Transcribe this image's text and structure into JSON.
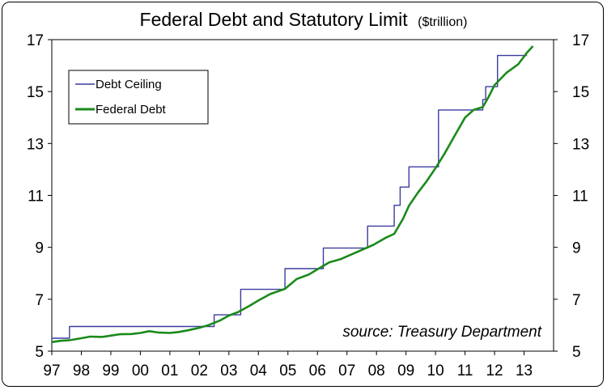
{
  "chart_data": {
    "type": "line",
    "title": "Federal Debt and Statutory Limit",
    "title_unit": "($trillion)",
    "xlabel": "",
    "ylabel": "",
    "xlim": [
      1997.0,
      2014.0
    ],
    "ylim": [
      5,
      17
    ],
    "y_ticks": [
      5,
      7,
      9,
      11,
      13,
      15,
      17
    ],
    "x_ticks": [
      {
        "label": "97",
        "value": 1997.0
      },
      {
        "label": "98",
        "value": 1998.0
      },
      {
        "label": "99",
        "value": 1999.0
      },
      {
        "label": "00",
        "value": 2000.0
      },
      {
        "label": "01",
        "value": 2001.0
      },
      {
        "label": "02",
        "value": 2002.0
      },
      {
        "label": "03",
        "value": 2003.0
      },
      {
        "label": "04",
        "value": 2004.0
      },
      {
        "label": "05",
        "value": 2005.0
      },
      {
        "label": "06",
        "value": 2006.0
      },
      {
        "label": "07",
        "value": 2007.0
      },
      {
        "label": "08",
        "value": 2008.0
      },
      {
        "label": "09",
        "value": 2009.0
      },
      {
        "label": "10",
        "value": 2010.0
      },
      {
        "label": "11",
        "value": 2011.0
      },
      {
        "label": "12",
        "value": 2012.0
      },
      {
        "label": "13",
        "value": 2013.0
      }
    ],
    "grid": false,
    "legend": "top-left",
    "series": [
      {
        "name": "Debt Ceiling",
        "color": "#3b3b9f",
        "step": true,
        "points": [
          [
            1997.0,
            5.5
          ],
          [
            1997.6,
            5.95
          ],
          [
            2002.5,
            6.4
          ],
          [
            2003.4,
            7.38
          ],
          [
            2004.9,
            8.18
          ],
          [
            2006.2,
            8.97
          ],
          [
            2007.7,
            9.82
          ],
          [
            2008.6,
            10.62
          ],
          [
            2008.8,
            11.32
          ],
          [
            2009.1,
            12.1
          ],
          [
            2010.1,
            14.29
          ],
          [
            2011.6,
            14.69
          ],
          [
            2011.7,
            15.19
          ],
          [
            2012.1,
            16.39
          ],
          [
            2013.1,
            16.39
          ]
        ]
      },
      {
        "name": "Federal Debt",
        "color": "#1a8a1a",
        "step": false,
        "points": [
          [
            1997.0,
            5.35
          ],
          [
            1997.3,
            5.4
          ],
          [
            1997.6,
            5.42
          ],
          [
            1998.0,
            5.5
          ],
          [
            1998.3,
            5.56
          ],
          [
            1998.7,
            5.55
          ],
          [
            1999.0,
            5.6
          ],
          [
            1999.3,
            5.65
          ],
          [
            1999.7,
            5.66
          ],
          [
            2000.0,
            5.7
          ],
          [
            2000.3,
            5.77
          ],
          [
            2000.6,
            5.72
          ],
          [
            2001.0,
            5.7
          ],
          [
            2001.3,
            5.74
          ],
          [
            2001.6,
            5.8
          ],
          [
            2002.0,
            5.9
          ],
          [
            2002.3,
            6.0
          ],
          [
            2002.7,
            6.18
          ],
          [
            2003.0,
            6.37
          ],
          [
            2003.3,
            6.5
          ],
          [
            2003.7,
            6.75
          ],
          [
            2004.0,
            6.95
          ],
          [
            2004.4,
            7.2
          ],
          [
            2004.9,
            7.4
          ],
          [
            2005.3,
            7.78
          ],
          [
            2005.7,
            7.95
          ],
          [
            2006.0,
            8.15
          ],
          [
            2006.4,
            8.42
          ],
          [
            2006.8,
            8.55
          ],
          [
            2007.2,
            8.75
          ],
          [
            2007.5,
            8.9
          ],
          [
            2007.9,
            9.1
          ],
          [
            2008.3,
            9.36
          ],
          [
            2008.6,
            9.52
          ],
          [
            2008.9,
            10.1
          ],
          [
            2009.1,
            10.6
          ],
          [
            2009.4,
            11.1
          ],
          [
            2009.7,
            11.55
          ],
          [
            2010.0,
            12.05
          ],
          [
            2010.3,
            12.6
          ],
          [
            2010.6,
            13.2
          ],
          [
            2011.0,
            14.0
          ],
          [
            2011.3,
            14.3
          ],
          [
            2011.6,
            14.4
          ],
          [
            2011.8,
            14.8
          ],
          [
            2012.0,
            15.25
          ],
          [
            2012.4,
            15.72
          ],
          [
            2012.8,
            16.05
          ],
          [
            2013.1,
            16.5
          ],
          [
            2013.3,
            16.75
          ]
        ]
      }
    ],
    "annotation": "source: Treasury Department"
  }
}
